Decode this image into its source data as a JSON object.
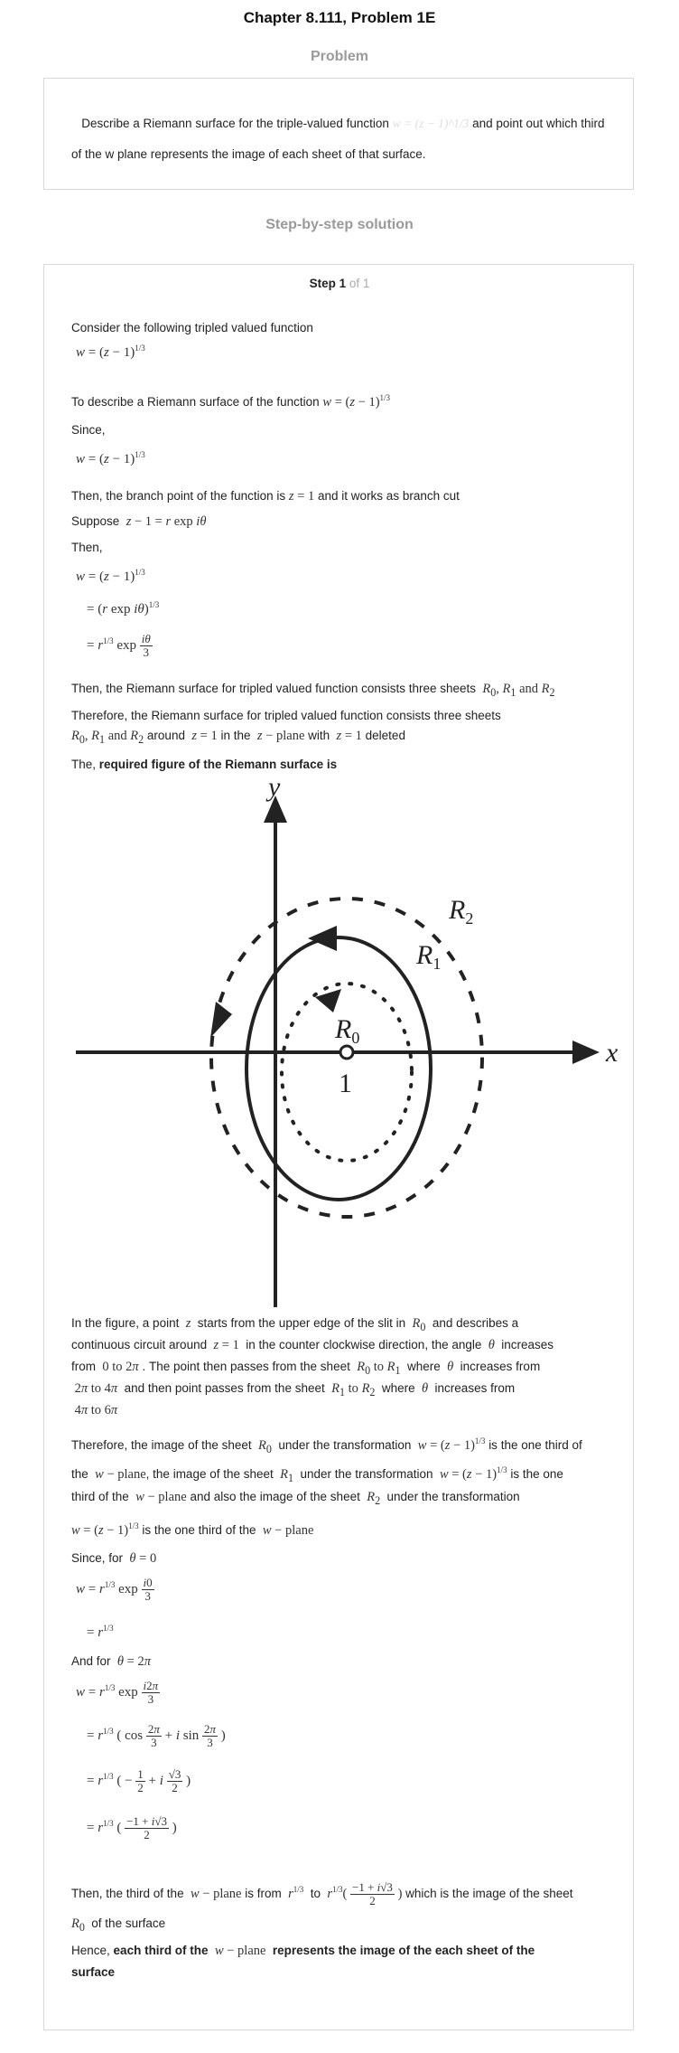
{
  "header": {
    "chapter": "Chapter 8.111, Problem 1E"
  },
  "problem": {
    "heading": "Problem",
    "text_a": "Describe a Riemann surface for the triple-valued function",
    "text_b": "and point out which third of the w plane represents the image of each sheet of that surface.",
    "formula": "w = (z − 1)^1/3"
  },
  "solution": {
    "heading": "Step-by-step solution",
    "step_label": "Step 1",
    "step_of": "of 1",
    "lines": {
      "l1": "Consider the following tripled valued function",
      "l2": "To describe a Riemann surface of the function",
      "l3": "Since,",
      "l4a": "Then, the branch point of the function is",
      "l4b": "and it works as branch cut",
      "l5": "Suppose",
      "l6": "Then,",
      "l7": "Then, the Riemann surface for tripled valued function consists three sheets",
      "l8": "Therefore, the Riemann surface for tripled valued function consists three sheets",
      "l8b_around": "around",
      "l8b_in": "in the",
      "l8b_with": "with",
      "l8b_deleted": "deleted",
      "l9a": "The,",
      "l9b": "required figure of the Riemann surface is",
      "f1a": "In the figure, a point",
      "f1b": "starts from the upper edge of the slit in",
      "f1c": "and describes a",
      "f2a": "continuous circuit around",
      "f2b": "in the counter clockwise direction, the angle",
      "f2c": "increases",
      "f3a": "from",
      "f3b": ". The point then passes from the sheet",
      "f3c": "where",
      "f3d": "increases from",
      "f4a": "and then point passes from the sheet",
      "f4b": "where",
      "f4c": "increases from",
      "t1a": "Therefore, the image of the sheet",
      "t1b": "under the transformation",
      "t1c": "is the one third of",
      "t2a": "the",
      "t2b": ", the image of the sheet",
      "t2c": "under the transformation",
      "t2d": "is the one",
      "t3a": "third of the",
      "t3b": "and also the image of the sheet",
      "t3c": "under the transformation",
      "t4a": "is the one third of the",
      "s1": "Since, for",
      "s2": "And for",
      "c1a": "Then, the third of the",
      "c1b": "is from",
      "c1c": "to",
      "c1d": "which is the image of the sheet",
      "c2": "of the surface",
      "h1a": "Hence,",
      "h1b": "each third of the",
      "h1c": "represents the image of the each sheet of the",
      "h2": "surface"
    }
  },
  "figure": {
    "axis_x": "x",
    "axis_y": "y",
    "label_r0": "R",
    "label_r1": "R",
    "label_r2": "R",
    "sub0": "0",
    "sub1": "1",
    "sub2": "2",
    "point_label": "1"
  }
}
